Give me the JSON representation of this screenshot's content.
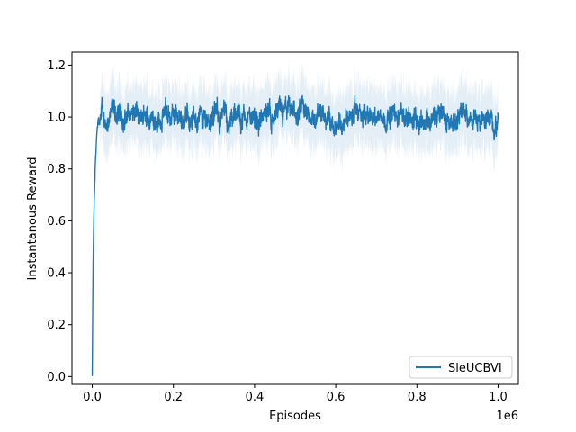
{
  "chart_data": {
    "type": "line",
    "title": "",
    "xlabel": "Episodes",
    "ylabel": "Instantanous Reward",
    "x_offset_label": "1e6",
    "xlim": [
      -50000,
      1050000
    ],
    "ylim": [
      -0.03,
      1.25
    ],
    "x_ticks": [
      0.0,
      0.2,
      0.4,
      0.6,
      0.8,
      1.0
    ],
    "x_tick_labels": [
      "0.0",
      "0.2",
      "0.4",
      "0.6",
      "0.8",
      "1.0"
    ],
    "x_tick_values": [
      0,
      200000,
      400000,
      600000,
      800000,
      1000000
    ],
    "y_ticks": [
      0.0,
      0.2,
      0.4,
      0.6,
      0.8,
      1.0,
      1.2
    ],
    "y_tick_labels": [
      "0.0",
      "0.2",
      "0.4",
      "0.6",
      "0.8",
      "1.0",
      "1.2"
    ],
    "grid": false,
    "legend_position": "lower-right",
    "series": [
      {
        "name": "SleUCBVI",
        "color": "#1f77b4",
        "x": [
          0,
          2000,
          4000,
          6000,
          8000,
          10000,
          12000,
          15000,
          20000,
          25000,
          30000,
          40000,
          50000,
          60000,
          80000,
          100000,
          120000,
          150000,
          180000,
          200000,
          220000,
          250000,
          300000,
          350000,
          400000,
          450000,
          500000,
          550000,
          600000,
          650000,
          700000,
          750000,
          800000,
          850000,
          870000,
          900000,
          950000,
          1000000
        ],
        "values": [
          0.0,
          0.42,
          0.6,
          0.72,
          0.82,
          0.88,
          0.92,
          0.96,
          0.98,
          0.99,
          0.98,
          1.0,
          1.01,
          0.99,
          1.0,
          1.02,
          0.98,
          1.0,
          1.01,
          0.99,
          1.0,
          1.0,
          1.0,
          0.99,
          1.0,
          1.0,
          1.01,
          1.0,
          0.99,
          1.0,
          1.0,
          1.0,
          1.0,
          1.0,
          0.97,
          1.02,
          1.0,
          0.98
        ],
        "noise_band": 0.06
      }
    ]
  }
}
